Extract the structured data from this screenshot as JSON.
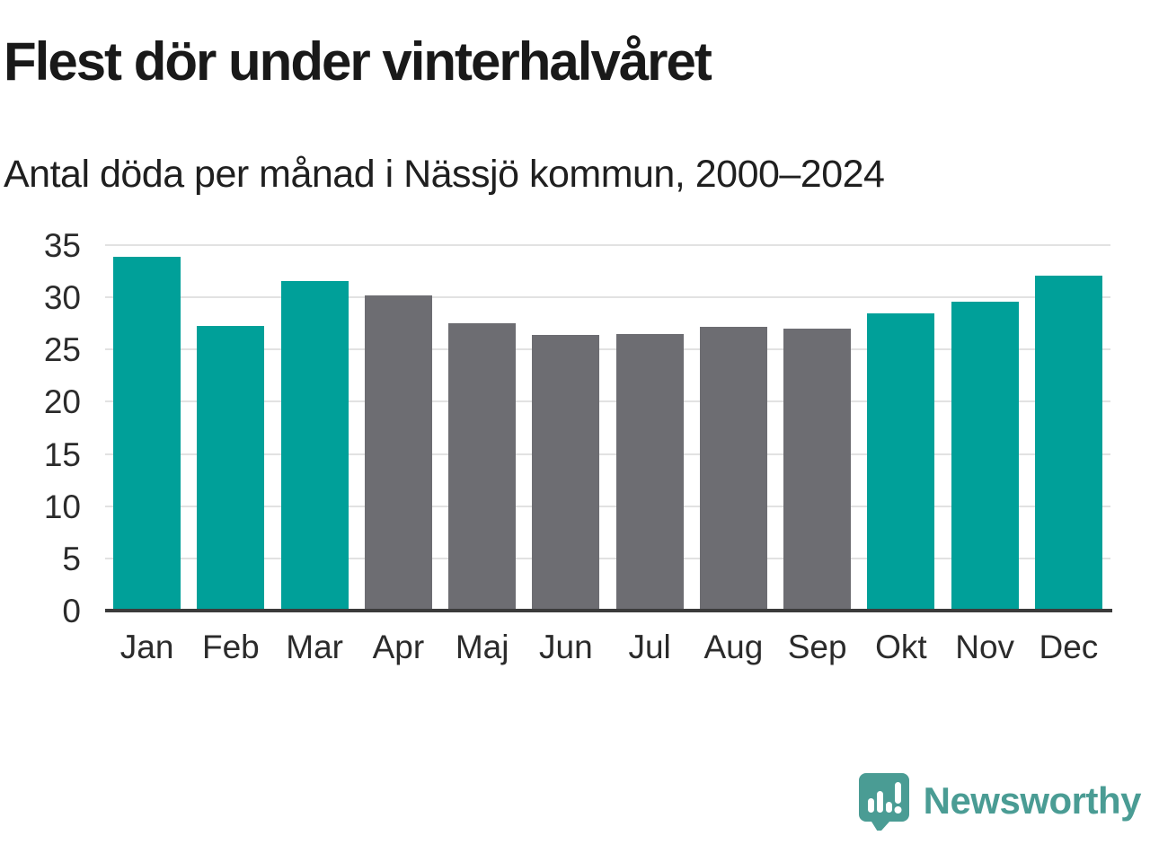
{
  "chart_data": {
    "type": "bar",
    "title": "Flest dör under vinterhalvåret",
    "subtitle": "Antal döda per månad i Nässjö kommun, 2000–2024",
    "categories": [
      "Jan",
      "Feb",
      "Mar",
      "Apr",
      "Maj",
      "Jun",
      "Jul",
      "Aug",
      "Sep",
      "Okt",
      "Nov",
      "Dec"
    ],
    "values": [
      33.9,
      27.3,
      31.6,
      30.2,
      27.5,
      26.4,
      26.5,
      27.2,
      27.0,
      28.5,
      29.6,
      32.1
    ],
    "groups": [
      "winter",
      "winter",
      "winter",
      "summer",
      "summer",
      "summer",
      "summer",
      "summer",
      "summer",
      "winter",
      "winter",
      "winter"
    ],
    "xlabel": "",
    "ylabel": "",
    "ylim": [
      0,
      35
    ],
    "yticks": [
      0,
      5,
      10,
      15,
      20,
      25,
      30,
      35
    ],
    "grid": "horizontal",
    "legend": "none"
  },
  "colors": {
    "winter_bar": "#00a099",
    "summer_bar": "#6d6d72",
    "gridline": "#e2e2e2",
    "axis_line": "#3b3b3b",
    "title_text": "#191919",
    "tick_text": "#2b2b2b",
    "logo": "#4a9c94"
  },
  "logo": {
    "text": "Newsworthy",
    "icon": "bar-chart-speech-bubble-icon"
  }
}
